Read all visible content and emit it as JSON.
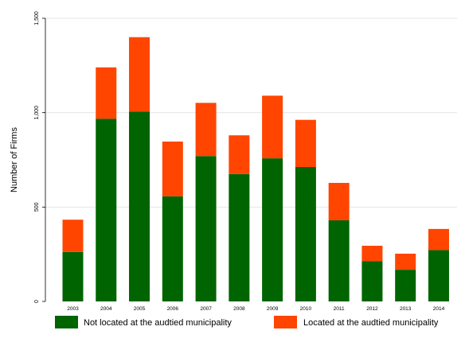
{
  "chart_data": {
    "type": "bar",
    "stacked": true,
    "title": "",
    "xlabel": "",
    "ylabel": "Number of Firms",
    "ylim": [
      0,
      1500
    ],
    "yticks": [
      0,
      500,
      1000,
      1500
    ],
    "ytick_labels": [
      "0",
      "500",
      "1,000",
      "1,500"
    ],
    "grid": true,
    "legend_position": "bottom",
    "categories": [
      "2003",
      "2004",
      "2005",
      "2006",
      "2007",
      "2008",
      "2009",
      "2010",
      "2011",
      "2012",
      "2013",
      "2014"
    ],
    "series": [
      {
        "name": "Not located at the audtied municipality",
        "color": "#006400",
        "values": [
          262,
          968,
          1005,
          557,
          770,
          675,
          758,
          712,
          430,
          213,
          168,
          272
        ]
      },
      {
        "name": "Located at the audtied municipality",
        "color": "#ff4500",
        "values": [
          171,
          272,
          395,
          290,
          282,
          205,
          332,
          250,
          198,
          82,
          85,
          112
        ]
      }
    ]
  }
}
